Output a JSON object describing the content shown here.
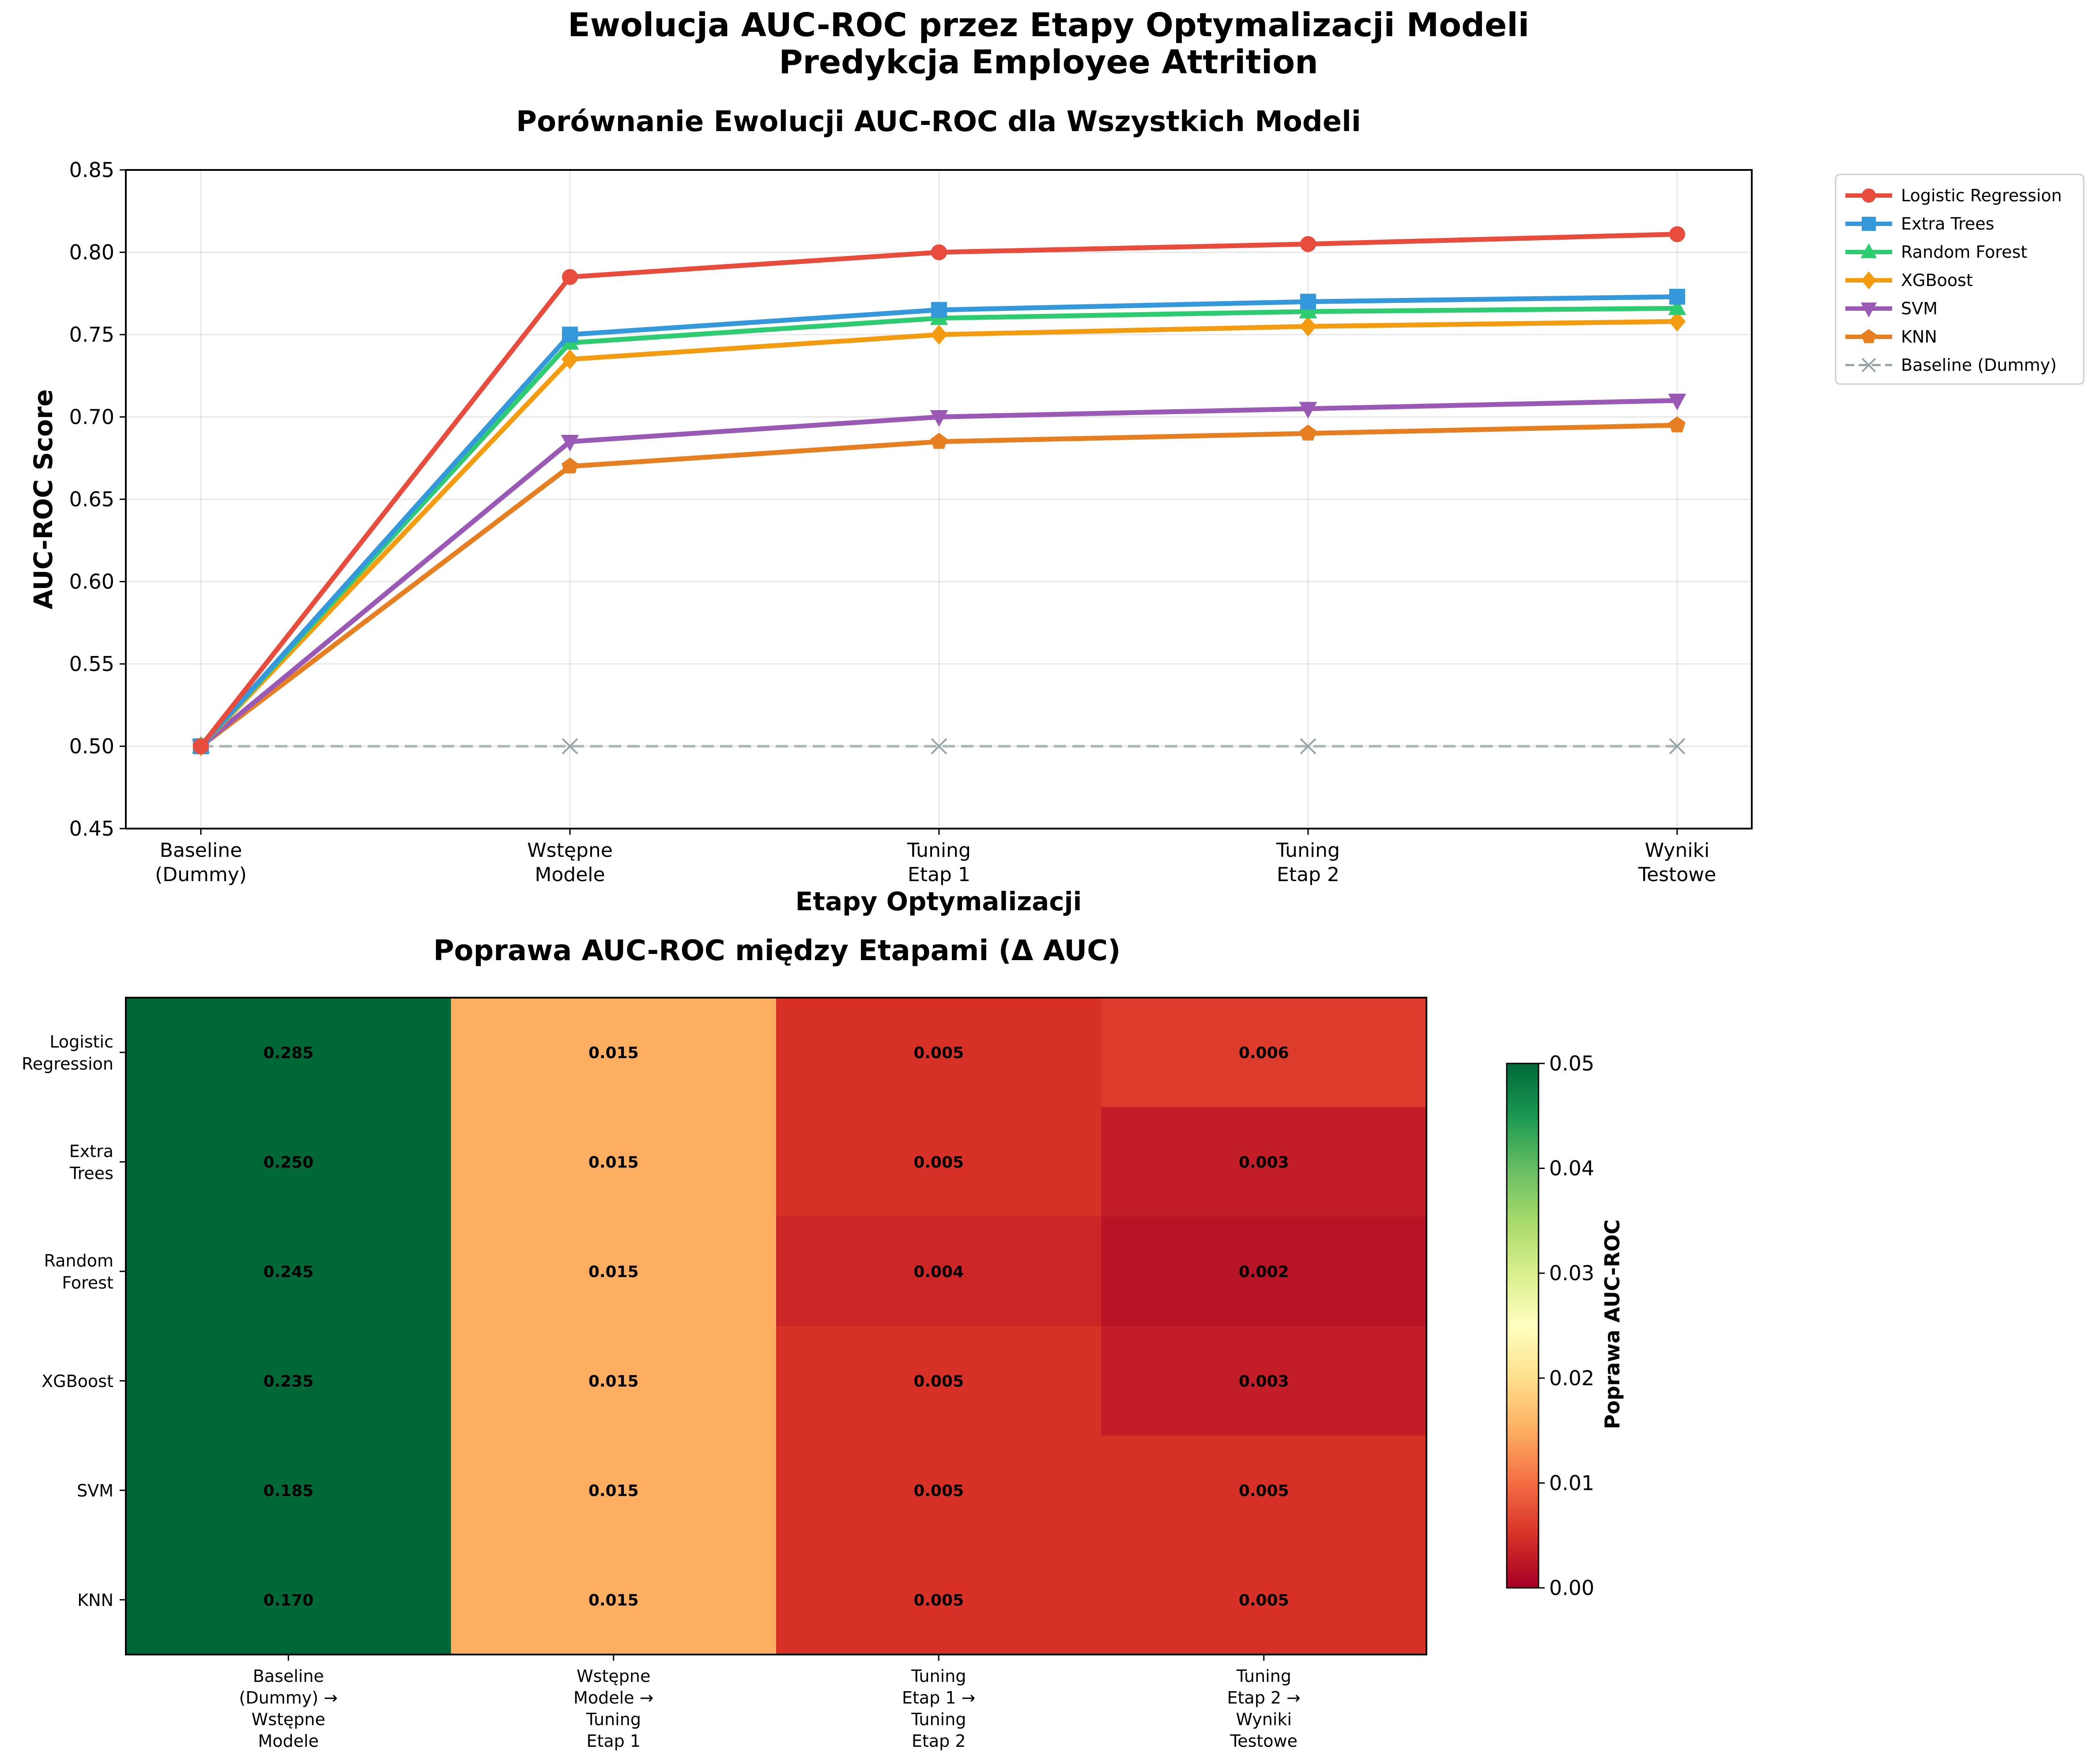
{
  "figure": {
    "suptitle_line1": "Ewolucja AUC-ROC przez Etapy Optymalizacji Modeli",
    "suptitle_line2": "Predykcja Employee Attrition"
  },
  "chart_data": [
    {
      "type": "line",
      "title": "Porównanie Ewolucji AUC-ROC dla Wszystkich Modeli",
      "xlabel": "Etapy Optymalizacji",
      "ylabel": "AUC-ROC Score",
      "categories": [
        [
          "Baseline",
          "(Dummy)"
        ],
        [
          "Wstępne",
          "Modele"
        ],
        [
          "Tuning",
          "Etap 1"
        ],
        [
          "Tuning",
          "Etap 2"
        ],
        [
          "Wyniki",
          "Testowe"
        ]
      ],
      "ylim": [
        0.45,
        0.85
      ],
      "yticks": [
        "0.45",
        "0.50",
        "0.55",
        "0.60",
        "0.65",
        "0.70",
        "0.75",
        "0.80",
        "0.85"
      ],
      "grid": true,
      "legend_position": "outside upper right",
      "series": [
        {
          "name": "Logistic Regression",
          "color": "#e74c3c",
          "marker": "circle",
          "dashed": false,
          "values": [
            0.5,
            0.785,
            0.8,
            0.805,
            0.811
          ]
        },
        {
          "name": "Extra Trees",
          "color": "#3498db",
          "marker": "square",
          "dashed": false,
          "values": [
            0.5,
            0.75,
            0.765,
            0.77,
            0.773
          ]
        },
        {
          "name": "Random Forest",
          "color": "#2ecc71",
          "marker": "triangle-up",
          "dashed": false,
          "values": [
            0.5,
            0.745,
            0.76,
            0.764,
            0.766
          ]
        },
        {
          "name": "XGBoost",
          "color": "#f39c12",
          "marker": "diamond",
          "dashed": false,
          "values": [
            0.5,
            0.735,
            0.75,
            0.755,
            0.758
          ]
        },
        {
          "name": "SVM",
          "color": "#9b59b6",
          "marker": "triangle-down",
          "dashed": false,
          "values": [
            0.5,
            0.685,
            0.7,
            0.705,
            0.71
          ]
        },
        {
          "name": "KNN",
          "color": "#e67e22",
          "marker": "pentagon",
          "dashed": false,
          "values": [
            0.5,
            0.67,
            0.685,
            0.69,
            0.695
          ]
        },
        {
          "name": "Baseline (Dummy)",
          "color": "#95a5a6",
          "marker": "x",
          "dashed": true,
          "values": [
            0.5,
            0.5,
            0.5,
            0.5,
            0.5
          ]
        }
      ]
    },
    {
      "type": "heatmap",
      "title": "Poprawa AUC-ROC między Etapami (Δ AUC)",
      "rows": [
        [
          "Logistic",
          "Regression"
        ],
        [
          "Extra",
          "Trees"
        ],
        [
          "Random",
          "Forest"
        ],
        [
          "XGBoost"
        ],
        [
          "SVM"
        ],
        [
          "KNN"
        ]
      ],
      "columns": [
        [
          "Baseline",
          "(Dummy) →",
          "Wstępne",
          "Modele"
        ],
        [
          "Wstępne",
          "Modele →",
          "Tuning",
          "Etap 1"
        ],
        [
          "Tuning",
          "Etap 1 →",
          "Tuning",
          "Etap 2"
        ],
        [
          "Tuning",
          "Etap 2 →",
          "Wyniki",
          "Testowe"
        ]
      ],
      "values": [
        [
          0.285,
          0.015,
          0.005,
          0.006
        ],
        [
          0.25,
          0.015,
          0.005,
          0.003
        ],
        [
          0.245,
          0.015,
          0.004,
          0.002
        ],
        [
          0.235,
          0.015,
          0.005,
          0.003
        ],
        [
          0.185,
          0.015,
          0.005,
          0.005
        ],
        [
          0.17,
          0.015,
          0.005,
          0.005
        ]
      ],
      "labels": [
        [
          "0.285",
          "0.015",
          "0.005",
          "0.006"
        ],
        [
          "0.250",
          "0.015",
          "0.005",
          "0.003"
        ],
        [
          "0.245",
          "0.015",
          "0.004",
          "0.002"
        ],
        [
          "0.235",
          "0.015",
          "0.005",
          "0.003"
        ],
        [
          "0.185",
          "0.015",
          "0.005",
          "0.005"
        ],
        [
          "0.170",
          "0.015",
          "0.005",
          "0.005"
        ]
      ],
      "colormap": "RdYlGn",
      "vmin": 0.0,
      "vmax": 0.05,
      "colorbar_label": "Poprawa AUC-ROC",
      "colorbar_ticks": [
        "0.00",
        "0.01",
        "0.02",
        "0.03",
        "0.04",
        "0.05"
      ]
    }
  ]
}
